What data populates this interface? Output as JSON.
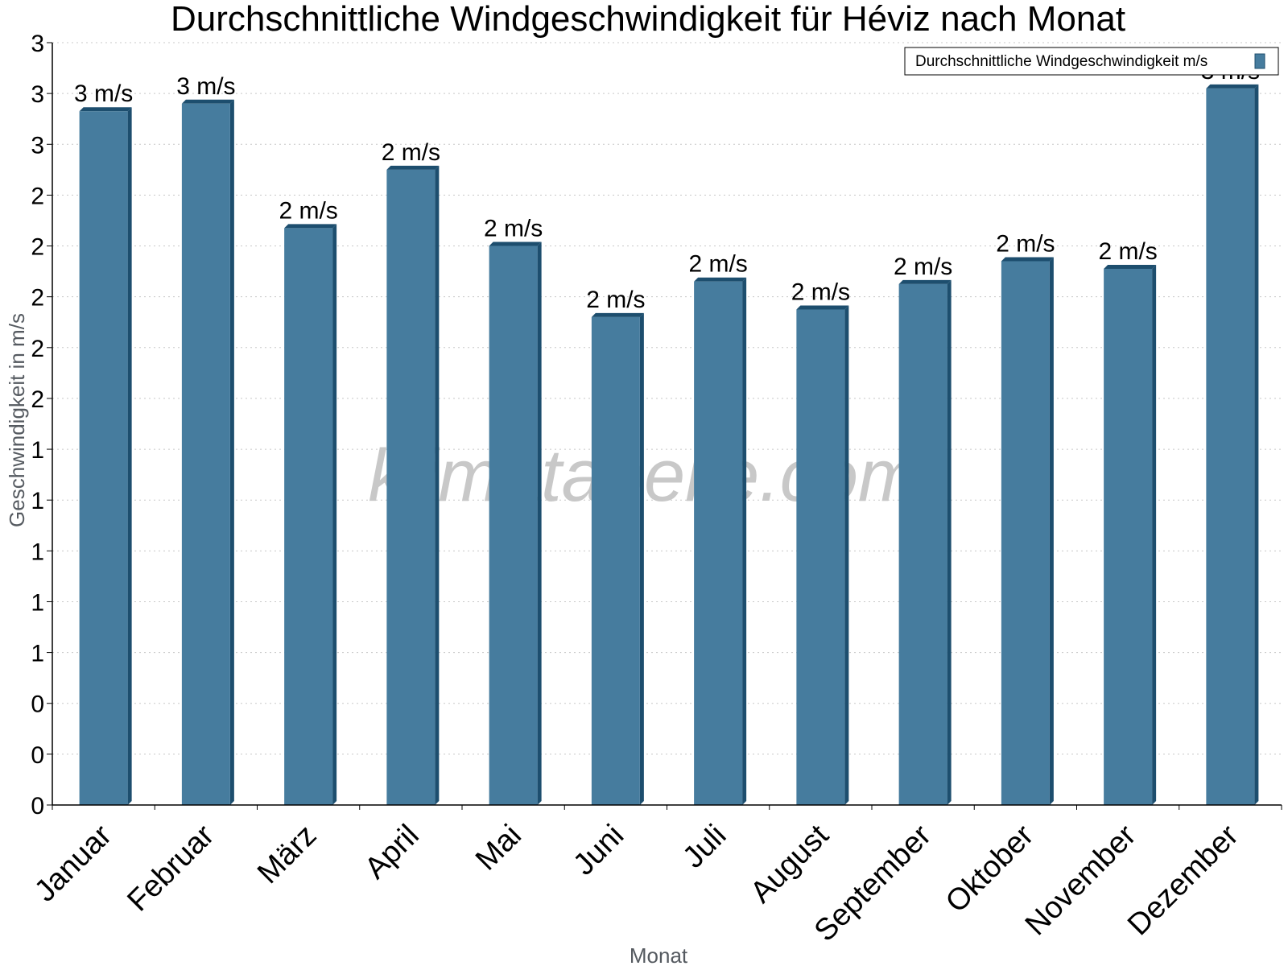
{
  "chart_data": {
    "type": "bar",
    "title": "Durchschnittliche Windgeschwindigkeit für Héviz nach Monat",
    "xlabel": "Monat",
    "ylabel": "Geschwindigkeit in m/s",
    "categories": [
      "Januar",
      "Februar",
      "März",
      "April",
      "Mai",
      "Juni",
      "Juli",
      "August",
      "September",
      "Oktober",
      "November",
      "Dezember"
    ],
    "series": [
      {
        "name": "Durchschnittliche Windgeschwindigkeit m/s",
        "values": [
          2.73,
          2.76,
          2.27,
          2.5,
          2.2,
          1.92,
          2.06,
          1.95,
          2.05,
          2.14,
          2.11,
          2.82
        ],
        "data_labels": [
          "3 m/s",
          "3 m/s",
          "2 m/s",
          "2 m/s",
          "2 m/s",
          "2 m/s",
          "2 m/s",
          "2 m/s",
          "2 m/s",
          "2 m/s",
          "2 m/s",
          "3 m/s"
        ]
      }
    ],
    "ylim": [
      0,
      3
    ],
    "y_tick_values": [
      0,
      0.2,
      0.4,
      0.6,
      0.8,
      1,
      1.2,
      1.4,
      1.6,
      1.8,
      2,
      2.2,
      2.4,
      2.6,
      2.8,
      3
    ],
    "y_tick_labels": [
      "0",
      "0",
      "0",
      "1",
      "1",
      "1",
      "1",
      "1",
      "2",
      "2",
      "2",
      "2",
      "2",
      "3",
      "3",
      "3"
    ],
    "grid": true,
    "legend_position": "top-right",
    "watermark": "klimatabelle.com",
    "colors": {
      "bar_front": "#467c9e",
      "bar_side": "#1d4e6e",
      "grid": "#c8c8c8",
      "axis": "#000000"
    }
  }
}
